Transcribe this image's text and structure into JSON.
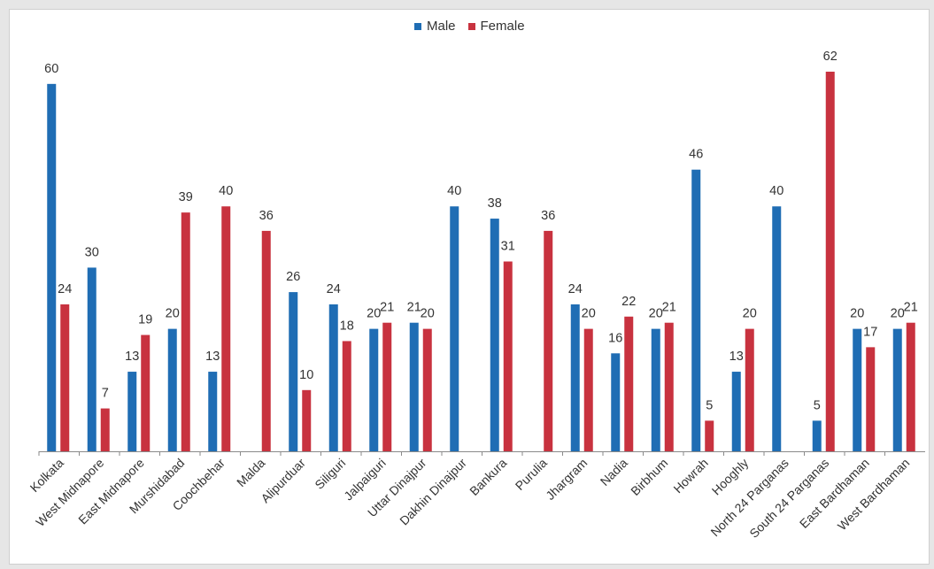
{
  "chart_data": {
    "type": "bar",
    "categories": [
      "Kolkata",
      "West Midnapore",
      "East Midnapore",
      "Murshidabad",
      "Coochbehar",
      "Malda",
      "Alipurduar",
      "Siliguri",
      "Jalpaiguri",
      "Uttar Dinajpur",
      "Dakhin Dinajpur",
      "Bankura",
      "Purulia",
      "Jhargram",
      "Nadia",
      "Birbhum",
      "Howrah",
      "Hooghly",
      "North 24 Parganas",
      "South 24 Parganas",
      "East Bardhaman",
      "West Bardhaman"
    ],
    "series": [
      {
        "name": "Male",
        "color": "#1f6db4",
        "values": [
          60,
          30,
          13,
          20,
          13,
          null,
          26,
          24,
          20,
          21,
          40,
          38,
          null,
          24,
          16,
          20,
          46,
          13,
          40,
          5,
          20,
          20
        ]
      },
      {
        "name": "Female",
        "color": "#c8323f",
        "values": [
          24,
          7,
          19,
          39,
          40,
          36,
          10,
          18,
          21,
          20,
          null,
          31,
          36,
          20,
          22,
          21,
          5,
          20,
          null,
          62,
          17,
          21
        ]
      }
    ],
    "ylim": [
      0,
      62
    ],
    "legend_position": "top-center",
    "grid": false
  }
}
